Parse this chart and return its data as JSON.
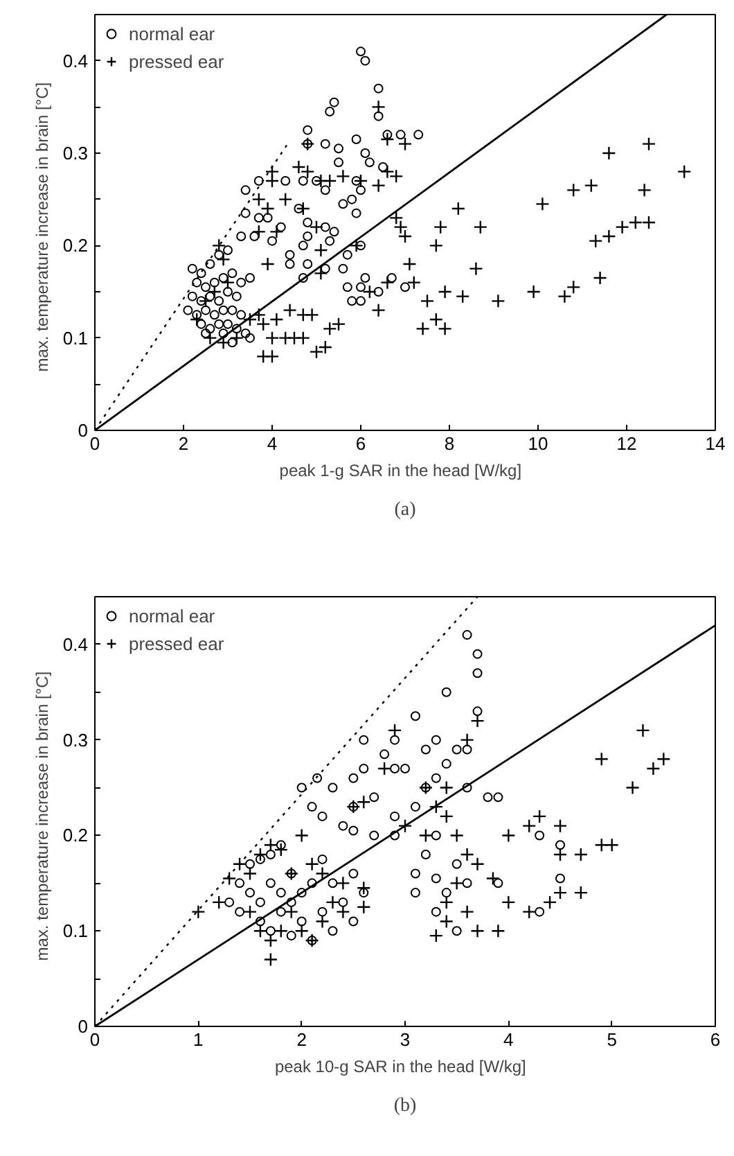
{
  "chart_data": [
    {
      "type": "scatter",
      "annotations": [
        "(a)"
      ],
      "xlabel": "peak 1-g SAR in the head   [W/kg]",
      "ylabel": "max. temperature increase in brain   [°C]",
      "xlim": [
        0,
        14
      ],
      "ylim": [
        0,
        0.45
      ],
      "xticks": [
        0,
        2,
        4,
        6,
        8,
        10,
        12,
        14
      ],
      "yticks": [
        {
          "value": 0,
          "label": "0"
        },
        {
          "value": 0.05,
          "label": null
        },
        0.1,
        {
          "value": 0.15,
          "label": null
        },
        0.2,
        {
          "value": 0.25,
          "label": null
        },
        0.3,
        {
          "value": 0.35,
          "label": null
        },
        0.4
      ],
      "grid": false,
      "legend": "top left",
      "series": [
        {
          "name": "normal ear",
          "color": "#000000",
          "marker": "circle",
          "x": [
            6.0,
            6.1,
            6.4,
            5.4,
            5.3,
            6.4,
            4.8,
            6.9,
            7.3,
            6.6,
            5.9,
            5.2,
            5.5,
            6.1,
            4.8,
            5.5,
            6.2,
            6.5,
            3.7,
            4.3,
            4.7,
            5.0,
            5.9,
            6.0,
            3.4,
            5.2,
            4.6,
            5.8,
            5.6,
            5.9,
            3.4,
            3.7,
            3.9,
            4.2,
            4.8,
            5.2,
            3.3,
            3.6,
            4.0,
            4.8,
            4.7,
            5.4,
            5.3,
            4.4,
            4.8,
            5.7,
            6.0,
            4.4,
            5.2,
            5.6,
            3.5,
            6.1,
            6.7,
            7.0,
            5.7,
            6.0,
            5.8,
            6.0,
            6.4,
            4.7,
            2.2,
            2.4,
            2.6,
            2.8,
            3.0,
            2.3,
            2.5,
            2.7,
            2.9,
            3.1,
            3.3,
            2.2,
            2.4,
            2.6,
            2.8,
            3.0,
            3.2,
            2.1,
            2.3,
            2.5,
            2.7,
            2.9,
            3.1,
            3.3,
            2.4,
            2.6,
            2.8,
            3.0,
            3.2,
            3.5,
            3.1,
            3.4,
            2.5,
            2.9
          ],
          "values": [
            0.41,
            0.4,
            0.37,
            0.355,
            0.345,
            0.34,
            0.325,
            0.32,
            0.32,
            0.32,
            0.315,
            0.31,
            0.305,
            0.3,
            0.31,
            0.29,
            0.29,
            0.285,
            0.27,
            0.27,
            0.27,
            0.27,
            0.27,
            0.26,
            0.26,
            0.26,
            0.24,
            0.25,
            0.245,
            0.235,
            0.235,
            0.23,
            0.23,
            0.22,
            0.225,
            0.22,
            0.21,
            0.21,
            0.205,
            0.21,
            0.2,
            0.215,
            0.205,
            0.19,
            0.18,
            0.19,
            0.2,
            0.18,
            0.175,
            0.175,
            0.165,
            0.165,
            0.165,
            0.155,
            0.155,
            0.155,
            0.14,
            0.14,
            0.15,
            0.165,
            0.175,
            0.17,
            0.18,
            0.19,
            0.195,
            0.16,
            0.155,
            0.16,
            0.165,
            0.17,
            0.16,
            0.145,
            0.14,
            0.145,
            0.14,
            0.15,
            0.145,
            0.13,
            0.125,
            0.13,
            0.125,
            0.13,
            0.13,
            0.125,
            0.115,
            0.11,
            0.115,
            0.115,
            0.11,
            0.1,
            0.095,
            0.105,
            0.105,
            0.105
          ]
        },
        {
          "name": "pressed ear",
          "color": "#000000",
          "marker": "cross",
          "x": [
            2.3,
            2.5,
            2.7,
            2.8,
            2.9,
            3.0,
            2.6,
            2.9,
            3.2,
            3.5,
            3.7,
            3.8,
            4.0,
            4.3,
            4.5,
            4.1,
            4.4,
            4.7,
            4.9,
            4.7,
            5.0,
            5.3,
            5.5,
            5.2,
            3.8,
            4.0,
            3.7,
            3.9,
            3.7,
            4.1,
            4.3,
            4.0,
            4.6,
            4.8,
            4.8,
            4.0,
            4.7,
            5.0,
            5.1,
            5.3,
            5.6,
            6.0,
            6.4,
            6.6,
            6.8,
            3.9,
            5.1,
            5.1,
            5.9,
            6.2,
            6.4,
            6.6,
            6.8,
            6.9,
            7.0,
            7.1,
            7.2,
            7.4,
            7.5,
            7.7,
            7.7,
            7.8,
            7.9,
            7.9,
            8.2,
            8.3,
            8.6,
            8.7,
            9.1,
            9.9,
            10.1,
            10.6,
            10.8,
            10.8,
            11.2,
            11.3,
            11.4,
            11.6,
            11.6,
            11.9,
            12.2,
            12.4,
            12.5,
            12.5,
            13.3,
            6.4,
            6.6,
            7.0
          ],
          "values": [
            0.12,
            0.14,
            0.15,
            0.2,
            0.185,
            0.16,
            0.1,
            0.095,
            0.1,
            0.12,
            0.125,
            0.115,
            0.1,
            0.1,
            0.1,
            0.12,
            0.13,
            0.125,
            0.125,
            0.1,
            0.085,
            0.11,
            0.115,
            0.09,
            0.08,
            0.08,
            0.25,
            0.24,
            0.215,
            0.215,
            0.25,
            0.27,
            0.285,
            0.28,
            0.31,
            0.28,
            0.24,
            0.22,
            0.27,
            0.27,
            0.275,
            0.27,
            0.265,
            0.28,
            0.275,
            0.18,
            0.195,
            0.17,
            0.2,
            0.15,
            0.13,
            0.16,
            0.23,
            0.22,
            0.21,
            0.18,
            0.16,
            0.11,
            0.14,
            0.12,
            0.2,
            0.22,
            0.15,
            0.11,
            0.24,
            0.145,
            0.175,
            0.22,
            0.14,
            0.15,
            0.245,
            0.145,
            0.26,
            0.155,
            0.265,
            0.205,
            0.165,
            0.21,
            0.3,
            0.22,
            0.225,
            0.26,
            0.225,
            0.31,
            0.28,
            0.35,
            0.315,
            0.31
          ]
        },
        {
          "type": "line",
          "color": "#000000",
          "line_style": "solid",
          "x": [
            0,
            12.9
          ],
          "values": [
            0,
            0.45
          ]
        },
        {
          "type": "line",
          "color": "#000000",
          "line_style": "dotted",
          "x": [
            0,
            4.35
          ],
          "values": [
            0,
            0.31
          ]
        }
      ]
    },
    {
      "type": "scatter",
      "annotations": [
        "(b)"
      ],
      "xlabel": "peak 10-g SAR in the head   [W/kg]",
      "ylabel": "max. temperature increase in brain   [°C]",
      "xlim": [
        0,
        6
      ],
      "ylim": [
        0,
        0.45
      ],
      "xticks": [
        0,
        1,
        2,
        3,
        4,
        5,
        6
      ],
      "yticks": [
        {
          "value": 0,
          "label": "0"
        },
        {
          "value": 0.05,
          "label": null
        },
        0.1,
        {
          "value": 0.15,
          "label": null
        },
        0.2,
        {
          "value": 0.25,
          "label": null
        },
        0.3,
        {
          "value": 0.35,
          "label": null
        },
        0.4
      ],
      "grid": false,
      "legend": "top left",
      "series": [
        {
          "name": "normal ear",
          "color": "#000000",
          "marker": "circle",
          "x": [
            3.6,
            3.7,
            3.7,
            3.4,
            3.7,
            3.1,
            2.6,
            2.9,
            3.3,
            3.5,
            3.6,
            3.2,
            2.3,
            2.0,
            2.15,
            2.5,
            2.6,
            2.8,
            2.9,
            3.0,
            3.4,
            2.7,
            2.5,
            2.1,
            2.2,
            2.4,
            2.5,
            2.7,
            2.9,
            3.1,
            3.2,
            3.3,
            3.6,
            3.8,
            3.9,
            3.3,
            3.2,
            3.1,
            3.3,
            3.5,
            3.4,
            3.6,
            3.3,
            4.3,
            4.5,
            4.5,
            3.9,
            4.3,
            3.1,
            3.5,
            2.9,
            1.3,
            1.4,
            1.5,
            1.6,
            1.7,
            1.8,
            1.9,
            1.5,
            1.6,
            1.7,
            1.8,
            1.9,
            2.0,
            2.1,
            1.4,
            1.6,
            1.8,
            2.0,
            2.2,
            1.7,
            1.9,
            2.1,
            2.3,
            2.5,
            2.6,
            2.5,
            2.2,
            2.3,
            2.4
          ],
          "values": [
            0.41,
            0.39,
            0.37,
            0.35,
            0.33,
            0.325,
            0.3,
            0.3,
            0.3,
            0.29,
            0.29,
            0.29,
            0.25,
            0.25,
            0.26,
            0.26,
            0.27,
            0.285,
            0.27,
            0.27,
            0.275,
            0.24,
            0.23,
            0.23,
            0.22,
            0.21,
            0.205,
            0.2,
            0.22,
            0.23,
            0.25,
            0.26,
            0.25,
            0.24,
            0.24,
            0.2,
            0.18,
            0.16,
            0.155,
            0.17,
            0.14,
            0.15,
            0.12,
            0.2,
            0.19,
            0.155,
            0.15,
            0.12,
            0.14,
            0.1,
            0.2,
            0.13,
            0.15,
            0.17,
            0.175,
            0.18,
            0.19,
            0.16,
            0.14,
            0.13,
            0.15,
            0.14,
            0.13,
            0.14,
            0.15,
            0.12,
            0.11,
            0.12,
            0.11,
            0.12,
            0.1,
            0.095,
            0.09,
            0.1,
            0.11,
            0.14,
            0.16,
            0.175,
            0.15,
            0.13
          ]
        },
        {
          "name": "pressed ear",
          "color": "#000000",
          "marker": "cross",
          "x": [
            1.0,
            1.2,
            1.3,
            1.4,
            1.5,
            1.6,
            1.7,
            1.8,
            1.5,
            1.6,
            1.7,
            1.7,
            1.8,
            2.0,
            2.1,
            1.9,
            2.2,
            2.3,
            2.4,
            2.4,
            2.6,
            2.6,
            2.2,
            2.1,
            2.0,
            1.9,
            2.5,
            2.6,
            2.9,
            2.8,
            3.2,
            3.4,
            3.6,
            3.7,
            3.3,
            3.4,
            3.2,
            3.0,
            3.5,
            3.6,
            3.7,
            3.5,
            3.4,
            3.6,
            3.4,
            3.3,
            3.7,
            3.9,
            4.0,
            4.2,
            4.3,
            4.5,
            4.5,
            4.7,
            4.9,
            5.0,
            5.2,
            5.4,
            4.9,
            5.3,
            5.5,
            4.4,
            4.5,
            4.7,
            4.0,
            4.2,
            3.85
          ],
          "values": [
            0.12,
            0.13,
            0.155,
            0.17,
            0.16,
            0.18,
            0.19,
            0.185,
            0.12,
            0.1,
            0.09,
            0.07,
            0.1,
            0.1,
            0.09,
            0.12,
            0.11,
            0.13,
            0.15,
            0.12,
            0.145,
            0.125,
            0.16,
            0.17,
            0.2,
            0.16,
            0.23,
            0.235,
            0.31,
            0.27,
            0.25,
            0.25,
            0.3,
            0.32,
            0.23,
            0.22,
            0.2,
            0.21,
            0.2,
            0.18,
            0.17,
            0.15,
            0.13,
            0.12,
            0.11,
            0.095,
            0.1,
            0.1,
            0.2,
            0.21,
            0.22,
            0.21,
            0.18,
            0.18,
            0.19,
            0.19,
            0.25,
            0.27,
            0.28,
            0.31,
            0.28,
            0.13,
            0.14,
            0.14,
            0.13,
            0.12,
            0.155
          ]
        },
        {
          "type": "line",
          "color": "#000000",
          "line_style": "solid",
          "x": [
            0,
            6
          ],
          "values": [
            0,
            0.42
          ]
        },
        {
          "type": "line",
          "color": "#000000",
          "line_style": "dotted",
          "x": [
            0,
            3.7
          ],
          "values": [
            0,
            0.45
          ]
        }
      ]
    }
  ]
}
